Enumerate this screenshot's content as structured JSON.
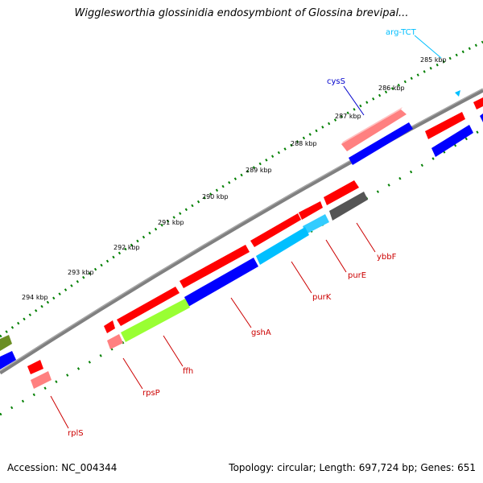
{
  "header": {
    "title": "Wigglesworthia glossinidia endosymbiont of Glossina brevipal..."
  },
  "footer": {
    "accession": "Accession: NC_004344",
    "summary": "Topology: circular; Length: 697,724 bp; Genes: 651"
  },
  "ticks": [
    "285 kbp",
    "286 kbp",
    "287 kbp",
    "288 kbp",
    "289 kbp",
    "290 kbp",
    "291 kbp",
    "292 kbp",
    "293 kbp",
    "294 kbp"
  ],
  "gene_labels": {
    "arg_tct": "arg-TCT",
    "cyss": "cysS",
    "ybbf": "ybbF",
    "pure": "purE",
    "purk": "purK",
    "gsha": "gshA",
    "ffh": "ffh",
    "rpsp": "rpsP",
    "rpls": "rplS"
  },
  "colors": {
    "cds_forward": "#ff0000",
    "cds_reverse": "#0000ff",
    "trna": "#00bfff",
    "rrna": "#ff8080",
    "other": "#808080",
    "ffh": "#99ff33",
    "purk": "#33ccff",
    "olive": "#6b8e23",
    "backbone": "#808080",
    "tick": "#007f00"
  }
}
